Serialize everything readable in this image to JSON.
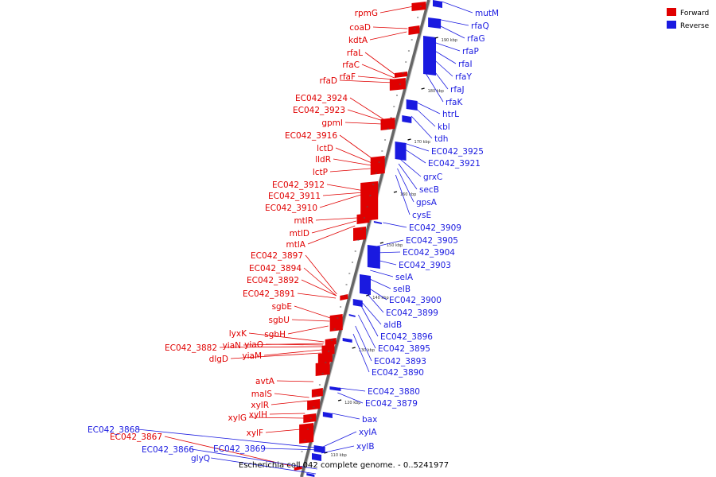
{
  "caption": "Escherichia coli 042 complete genome. - 0..5241977",
  "legend": {
    "forward": "Forward",
    "reverse": "Reverse"
  },
  "colors": {
    "forward": "#e00000",
    "reverse": "#1a1ae0",
    "backbone": "#888888"
  },
  "ticks": [
    "110 kbp",
    "120 kbp",
    "130 kbp",
    "140 kbp",
    "150 kbp",
    "160 kbp",
    "170 kbp",
    "180 kbp",
    "190 kbp"
  ],
  "forward_labels": [
    "rpmG",
    "coaD",
    "kdtA",
    "rfaL",
    "rfaC",
    "rfaF",
    "rfaD",
    "EC042_3924",
    "EC042_3923",
    "gpmI",
    "EC042_3916",
    "lctD",
    "lldR",
    "lctP",
    "EC042_3912",
    "EC042_3911",
    "EC042_3910",
    "mtlR",
    "mtlD",
    "mtlA",
    "EC042_3897",
    "EC042_3894",
    "EC042_3892",
    "EC042_3891",
    "sgbE",
    "sgbU",
    "sgbH",
    "lyxK",
    "yiaN",
    "yiaO",
    "EC042_3882",
    "yiaM",
    "dlgD",
    "avtA",
    "malS",
    "xylR",
    "xylH",
    "xylG",
    "xylF",
    "EC042_3867"
  ],
  "reverse_labels": [
    "mutM",
    "rfaQ",
    "rfaG",
    "rfaP",
    "rfaI",
    "rfaY",
    "rfaJ",
    "rfaK",
    "htrL",
    "kbl",
    "tdh",
    "EC042_3925",
    "EC042_3921",
    "grxC",
    "secB",
    "gpsA",
    "cysE",
    "EC042_3909",
    "EC042_3905",
    "EC042_3904",
    "EC042_3903",
    "selA",
    "selB",
    "EC042_3900",
    "EC042_3899",
    "aldB",
    "EC042_3896",
    "EC042_3895",
    "EC042_3893",
    "EC042_3890",
    "EC042_3880",
    "EC042_3879",
    "bax",
    "xylA",
    "xylB",
    "EC042_3868",
    "EC042_3866",
    "EC042_3869",
    "glyQ"
  ]
}
